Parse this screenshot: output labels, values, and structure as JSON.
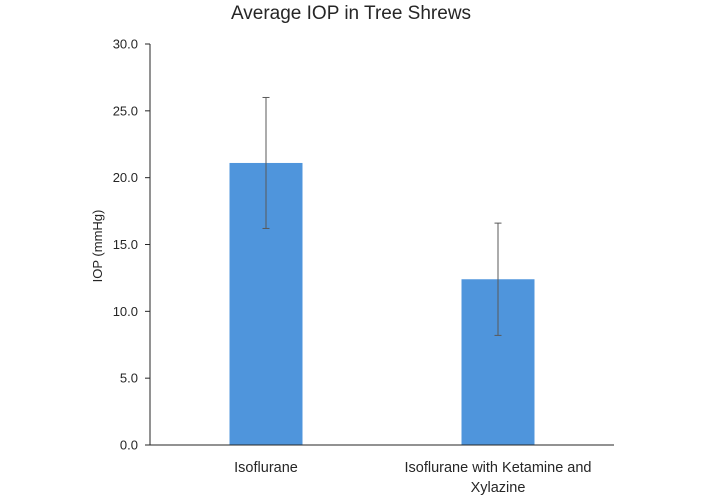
{
  "chart_data": {
    "type": "bar",
    "title": "Average IOP in Tree Shrews",
    "xlabel": "",
    "ylabel": "IOP (mmHg)",
    "ylim": [
      0,
      30
    ],
    "y_ticks": [
      "0.0",
      "5.0",
      "10.0",
      "15.0",
      "20.0",
      "25.0",
      "30.0"
    ],
    "grid": false,
    "legend": "none",
    "categories": [
      [
        "Isoflurane"
      ],
      [
        "Isoflurane with Ketamine and",
        "Xylazine"
      ]
    ],
    "series": [
      {
        "name": "Average IOP",
        "values": [
          21.1,
          12.4
        ],
        "error": [
          4.9,
          4.2
        ],
        "color": "#4f95dc"
      }
    ],
    "axis_color": "#262626",
    "errorbar_color": "#595959"
  }
}
